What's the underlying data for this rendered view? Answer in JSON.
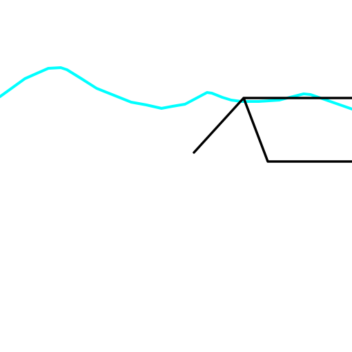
{
  "canvas": {
    "background": "#ffffff"
  },
  "strokes": {
    "cyan_color": "#00ffff",
    "black_color": "#000000"
  }
}
